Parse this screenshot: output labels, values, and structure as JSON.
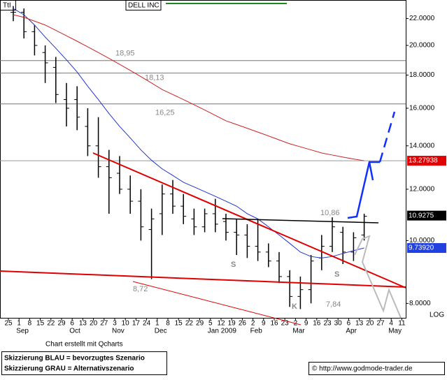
{
  "chart_data": {
    "type": "ohlc",
    "title": "DELL INC",
    "symbol": "TtI",
    "log_scale": true,
    "log_label": "LOG",
    "categories": [
      "25",
      "1",
      "8",
      "15",
      "22",
      "29",
      "6",
      "13",
      "20",
      "27",
      "3",
      "10",
      "17",
      "24",
      "1",
      "8",
      "15",
      "22",
      "29",
      "5",
      "12",
      "19",
      "26",
      "2",
      "9",
      "16",
      "23",
      "2",
      "9",
      "16",
      "23",
      "30",
      "6",
      "13",
      "20",
      "27",
      "4",
      "11"
    ],
    "months": [
      {
        "label": "Sep",
        "index": 1
      },
      {
        "label": "Oct",
        "index": 6
      },
      {
        "label": "Nov",
        "index": 10
      },
      {
        "label": "Dec",
        "index": 14
      },
      {
        "label": "Jan 2009",
        "index": 19
      },
      {
        "label": "Feb",
        "index": 23
      },
      {
        "label": "Mar",
        "index": 27
      },
      {
        "label": "Apr",
        "index": 32
      },
      {
        "label": "May",
        "index": 36
      }
    ],
    "open": [
      22.5,
      22.5,
      21,
      19.5,
      18.5,
      16.5,
      16.5,
      15,
      14,
      13,
      12.7,
      12,
      11.5,
      10.4,
      11,
      11.8,
      11.3,
      10.8,
      10.5,
      11,
      10.7,
      10.3,
      10.2,
      9.8,
      9.6,
      9.3,
      8.8,
      8.2,
      8.4,
      9.4,
      9.8,
      10.3,
      9.6,
      10.2,
      null,
      null,
      null,
      null
    ],
    "high": [
      23,
      22.8,
      21.5,
      20,
      19.2,
      17.5,
      17.3,
      16,
      15.5,
      13.8,
      13.5,
      12.6,
      12,
      11.2,
      12.2,
      12.4,
      11.8,
      11.2,
      11.2,
      11.6,
      11,
      10.8,
      10.6,
      10.8,
      9.9,
      9.6,
      9,
      8.8,
      9.5,
      10.2,
      10.86,
      10.5,
      10.3,
      11,
      null,
      null,
      null,
      null
    ],
    "low": [
      21.8,
      20.5,
      19.3,
      17.5,
      16.3,
      15,
      14.8,
      13.5,
      12.5,
      11,
      11.8,
      11,
      10,
      8.72,
      10.2,
      11,
      10.6,
      10.2,
      10.3,
      10.3,
      10,
      9.5,
      9.4,
      9.3,
      9.1,
      8.6,
      7.9,
      7.84,
      8,
      9,
      9.6,
      9.2,
      9.3,
      10,
      null,
      null,
      null,
      null
    ],
    "close": [
      22.5,
      21,
      20,
      18.8,
      16.8,
      16,
      15.5,
      14,
      13,
      12.5,
      12,
      11.5,
      10.5,
      10.8,
      11.8,
      11.3,
      10.9,
      10.5,
      11,
      10.6,
      10.3,
      10.2,
      9.8,
      9.6,
      9.3,
      8.8,
      8.2,
      8.4,
      9.3,
      9.8,
      10.5,
      9.6,
      10.1,
      10.9,
      null,
      null,
      null,
      null
    ],
    "bar_color": "#000000",
    "series": [
      {
        "color": "#2233cc",
        "values": [
          22.8,
          22.3,
          21.5,
          20.6,
          19.8,
          19,
          18.2,
          17.3,
          16.5,
          15.7,
          15,
          14.4,
          13.8,
          13.3,
          12.9,
          12.6,
          12.3,
          12.1,
          11.9,
          11.7,
          11.5,
          11.3,
          11,
          10.8,
          10.5,
          10.2,
          9.9,
          9.6,
          9.45,
          9.4,
          9.45,
          9.55,
          9.65,
          9.7392,
          null,
          null,
          null,
          null
        ]
      },
      {
        "color": "#cc2222",
        "values": [
          22.3,
          22.1,
          21.8,
          21.5,
          21.1,
          20.7,
          20.3,
          19.9,
          19.5,
          19.1,
          18.7,
          18.3,
          17.9,
          17.5,
          17.1,
          16.8,
          16.5,
          16.2,
          15.9,
          15.6,
          15.3,
          15.1,
          14.9,
          14.7,
          14.5,
          14.3,
          14.1,
          13.95,
          13.8,
          13.65,
          13.55,
          13.45,
          13.36,
          13.27938,
          null,
          null,
          null,
          null
        ]
      }
    ],
    "ylim": [
      7.6,
      23.5
    ],
    "yticks": [
      {
        "value": 8,
        "label": "8.0000"
      },
      {
        "value": 10,
        "label": "10.0000"
      },
      {
        "value": 12,
        "label": "12.0000"
      },
      {
        "value": 14,
        "label": "14.0000"
      },
      {
        "value": 16,
        "label": "16.0000"
      },
      {
        "value": 18,
        "label": "18.0000"
      },
      {
        "value": 20,
        "label": "20.0000"
      },
      {
        "value": 22,
        "label": "22.0000"
      }
    ],
    "levels": [
      {
        "value": 18.95,
        "label": "18,95"
      },
      {
        "value": 18.13,
        "label": "18,13"
      },
      {
        "value": 16.25,
        "label": "16,25"
      }
    ],
    "price_tags": [
      {
        "value": 13.27938,
        "label": "13.27938",
        "color": "#e00000"
      },
      {
        "value": 10.9275,
        "label": "10.9275",
        "color": "#000000"
      },
      {
        "value": 9.7392,
        "label": "9.73920",
        "color": "#2040e0"
      }
    ],
    "annotations": [
      "10,86",
      "8,72",
      "7,84",
      "S",
      "S",
      "K"
    ]
  },
  "footer": {
    "credit": "Chart erstellt mit Qcharts",
    "legend_blue": "Skizzierung BLAU = bevorzugtes Szenario",
    "legend_grey": "Skizzierung GRAU = Alternativszenario",
    "source": "© http://www.godmode-trader.de"
  }
}
